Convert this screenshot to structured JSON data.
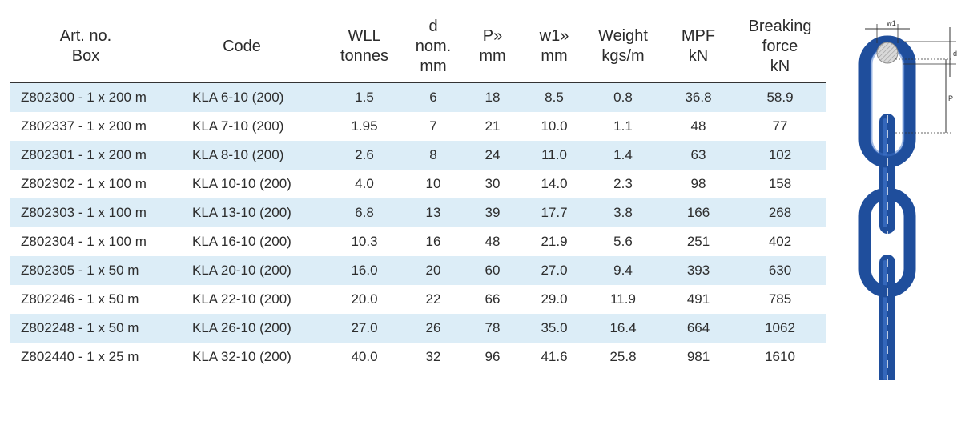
{
  "headers": [
    "Art. no.\nBox",
    "Code",
    "WLL\ntonnes",
    "d\nnom.\nmm",
    "P»\nmm",
    "w1»\nmm",
    "Weight\nkgs/m",
    "MPF\nkN",
    "Breaking\nforce\nkN"
  ],
  "rows": [
    [
      "Z802300 - 1 x 200 m",
      "KLA 6-10 (200)",
      "1.5",
      "6",
      "18",
      "8.5",
      "0.8",
      "36.8",
      "58.9"
    ],
    [
      "Z802337 - 1 x 200 m",
      "KLA 7-10 (200)",
      "1.95",
      "7",
      "21",
      "10.0",
      "1.1",
      "48",
      "77"
    ],
    [
      "Z802301 - 1 x 200 m",
      "KLA 8-10 (200)",
      "2.6",
      "8",
      "24",
      "11.0",
      "1.4",
      "63",
      "102"
    ],
    [
      "Z802302 - 1 x 100 m",
      "KLA 10-10 (200)",
      "4.0",
      "10",
      "30",
      "14.0",
      "2.3",
      "98",
      "158"
    ],
    [
      "Z802303 - 1 x 100 m",
      "KLA 13-10 (200)",
      "6.8",
      "13",
      "39",
      "17.7",
      "3.8",
      "166",
      "268"
    ],
    [
      "Z802304  - 1 x 100 m",
      "KLA 16-10 (200)",
      "10.3",
      "16",
      "48",
      "21.9",
      "5.6",
      "251",
      "402"
    ],
    [
      "Z802305 - 1 x 50 m",
      "KLA 20-10 (200)",
      "16.0",
      "20",
      "60",
      "27.0",
      "9.4",
      "393",
      "630"
    ],
    [
      "Z802246  - 1 x 50 m",
      "KLA 22-10 (200)",
      "20.0",
      "22",
      "66",
      "29.0",
      "11.9",
      "491",
      "785"
    ],
    [
      "Z802248 - 1 x 50 m",
      "KLA 26-10 (200)",
      "27.0",
      "26",
      "78",
      "35.0",
      "16.4",
      "664",
      "1062"
    ],
    [
      "Z802440 - 1 x 25 m",
      "KLA 32-10 (200)",
      "40.0",
      "32",
      "96",
      "41.6",
      "25.8",
      "981",
      "1610"
    ]
  ],
  "diagram": {
    "label_w1": "w1",
    "label_d": "d",
    "label_p": "P",
    "chain_color": "#1f4e9c",
    "chain_highlight": "#3d72c9"
  },
  "colors": {
    "stripe": "#dcedf7",
    "rule": "#333333"
  }
}
